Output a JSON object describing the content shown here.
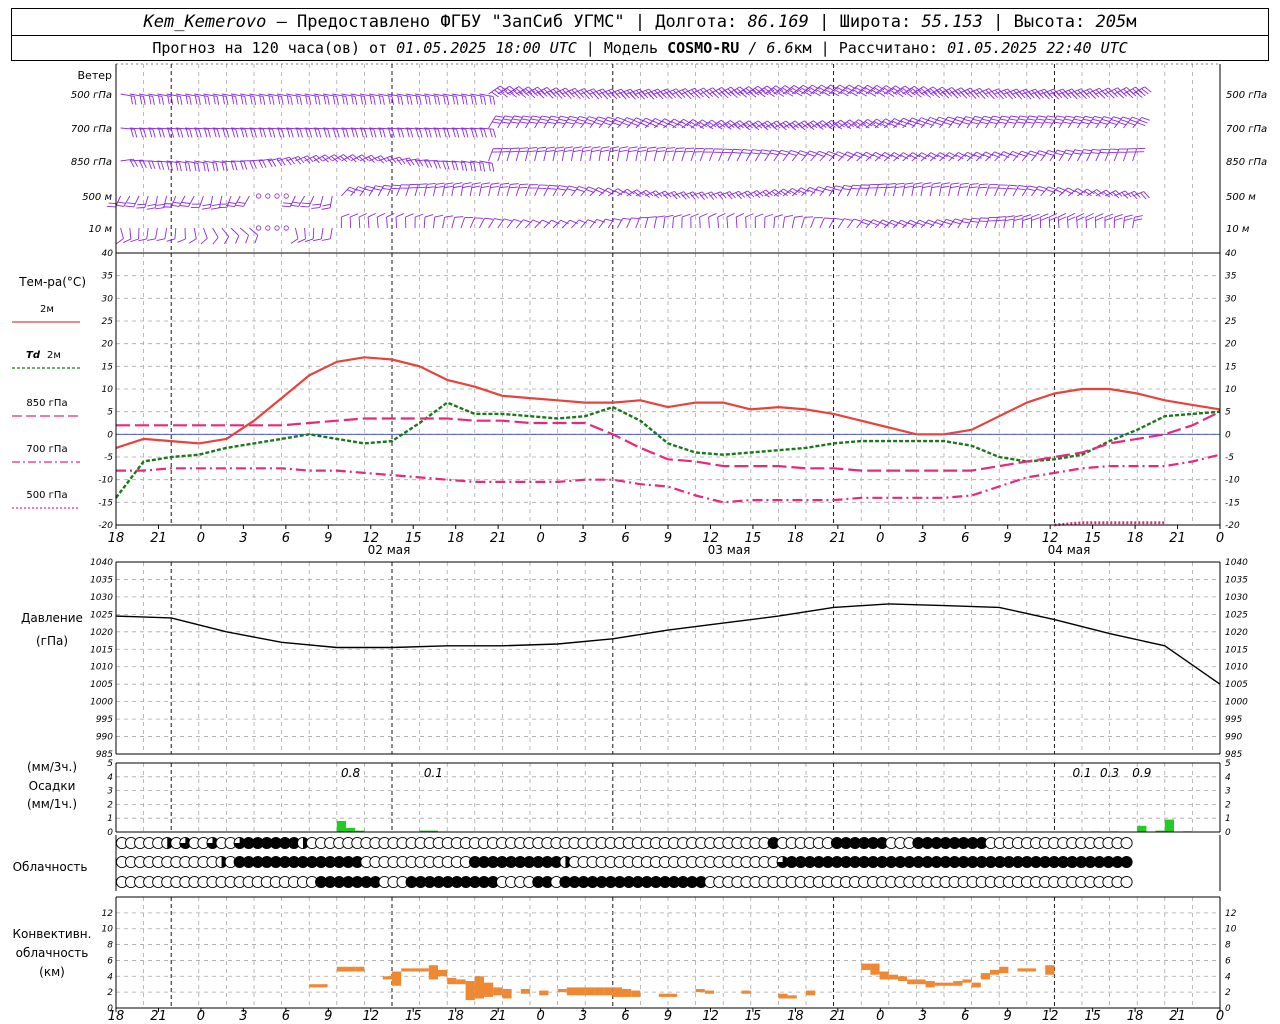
{
  "header": {
    "station": "Kem_Kemerovo",
    "provider": "— Предоставлено ФГБУ \"ЗапСиб УГМС\"",
    "lon_label": "Долгота:",
    "lon_value": "86.169",
    "lat_label": "Широта:",
    "lat_value": "55.153",
    "alt_label": "Высота:",
    "alt_value": "205",
    "alt_unit": "м",
    "forecast_prefix": "Прогноз на 120 часа(ов) от",
    "forecast_time": "01.05.2025 18:00 UTC",
    "model_label": "Модель",
    "model_name": "COSMO-RU",
    "model_res_value": "/ 6.6",
    "model_res_unit": "км",
    "calc_label": "Рассчитано:",
    "calc_time": "01.05.2025 22:40 UTC"
  },
  "chart_data": {
    "x_start": "01.05.2025 18:00 UTC",
    "x_step_hours": 3,
    "x_tick_labels": [
      "18",
      "21",
      "0",
      "3",
      "6",
      "9",
      "12",
      "15",
      "18",
      "21",
      "0",
      "3",
      "6",
      "9",
      "12",
      "15",
      "18",
      "21",
      "0",
      "3",
      "6",
      "9",
      "12",
      "15",
      "18",
      "21",
      "0"
    ],
    "day_labels": [
      "02 мая",
      "03 мая",
      "04 мая"
    ],
    "wind": {
      "title": "Ветер",
      "levels": [
        "500 гПа",
        "700 гПа",
        "850 гПа",
        "500 м",
        "10 м"
      ]
    },
    "temperature": {
      "type": "line",
      "ylabel": "Тем-ра(°C)",
      "ylim": [
        -20,
        40
      ],
      "y_ticks": [
        -20,
        -15,
        -10,
        -5,
        0,
        5,
        10,
        15,
        20,
        25,
        30,
        35,
        40
      ],
      "colors": {
        "t2m": "#e8423c",
        "td2m": "#1a7a1a",
        "t850": "#e8287c",
        "t700": "#e8287c",
        "t500": "#e8287c"
      },
      "legend": [
        {
          "label": "2м"
        },
        {
          "label_it": "Td",
          "label": " 2м"
        },
        {
          "label": "850 гПа"
        },
        {
          "label": "700 гПа"
        },
        {
          "label": "500 гПа"
        }
      ],
      "x_hours": [
        0,
        3,
        6,
        9,
        12,
        15,
        18,
        21,
        24,
        27,
        30,
        33,
        36,
        39,
        42,
        45,
        48,
        51,
        54,
        57,
        60,
        63,
        66,
        69,
        72,
        75,
        78,
        81,
        84,
        87,
        90,
        93,
        96,
        99,
        102,
        105,
        108,
        111,
        114,
        117,
        120
      ],
      "series": [
        {
          "key": "t2m",
          "values": [
            -3,
            -1,
            -1.5,
            -2,
            -1,
            3,
            8,
            13,
            16,
            17,
            16.5,
            15,
            12,
            10.5,
            8.5,
            8,
            7.5,
            7,
            7,
            7.5,
            6,
            7,
            7,
            5.5,
            6,
            5.5,
            4.5,
            3,
            1.5,
            0,
            0,
            1,
            4,
            7,
            9,
            10,
            10,
            9,
            7.5,
            6.5,
            5.5
          ]
        },
        {
          "key": "td2m",
          "values": [
            -14,
            -6,
            -5,
            -4.5,
            -3,
            -2,
            -1,
            0,
            -1,
            -2,
            -1.5,
            2.5,
            7,
            4.5,
            4.5,
            4,
            3.5,
            4,
            6,
            3,
            -2,
            -4,
            -4.5,
            -4,
            -3.5,
            -3,
            -2,
            -1.5,
            -1.5,
            -1.5,
            -1.5,
            -2.5,
            -5,
            -6,
            -5.5,
            -4.5,
            -1.5,
            1,
            4,
            4.5,
            5
          ]
        },
        {
          "key": "t850",
          "values": [
            2,
            2,
            2,
            2,
            2,
            2,
            2,
            2.5,
            3,
            3.5,
            3.5,
            3.5,
            3.5,
            3,
            3,
            2.5,
            2.5,
            2.5,
            0,
            -3,
            -5.5,
            -6,
            -7,
            -7,
            -7,
            -7.5,
            -7.5,
            -8,
            -8,
            -8,
            -8,
            -8,
            -7,
            -6,
            -5,
            -4,
            -2,
            -1,
            0,
            2,
            5
          ]
        },
        {
          "key": "t700",
          "values": [
            -8,
            -8,
            -7.5,
            -7.5,
            -7.5,
            -7.5,
            -7.5,
            -8,
            -8,
            -8.5,
            -9,
            -9.5,
            -10,
            -10.5,
            -10.5,
            -10.5,
            -10.5,
            -10,
            -10,
            -11,
            -11.5,
            -13.5,
            -15,
            -14.5,
            -14.5,
            -14.5,
            -14.5,
            -14,
            -14,
            -14,
            -14,
            -13.5,
            -11.5,
            -9.5,
            -8.5,
            -7.5,
            -7,
            -7,
            -7,
            -6,
            -4.5
          ]
        },
        {
          "key": "t500",
          "x_hours": [
            102,
            105,
            108,
            111,
            114
          ],
          "values": [
            -20,
            -19.5,
            -19.5,
            -19.5,
            -19.5
          ]
        }
      ]
    },
    "pressure": {
      "type": "line",
      "ylabel": "Давление",
      "yunit": "(гПа)",
      "ylim": [
        985,
        1040
      ],
      "y_ticks": [
        985,
        990,
        995,
        1000,
        1005,
        1010,
        1015,
        1020,
        1025,
        1030,
        1035,
        1040
      ],
      "color": "#000000",
      "x_hours": [
        0,
        6,
        12,
        18,
        24,
        30,
        36,
        42,
        48,
        54,
        60,
        66,
        72,
        78,
        84,
        90,
        96,
        102,
        108,
        114,
        120
      ],
      "values": [
        1024.5,
        1024,
        1020,
        1017,
        1015.5,
        1015.5,
        1016,
        1016,
        1016.5,
        1018,
        1020.5,
        1022.5,
        1024.5,
        1027,
        1028,
        1027.5,
        1027,
        1023.5,
        1019.5,
        1016,
        1005
      ]
    },
    "precip": {
      "type": "bar",
      "ylabel_top": "(мм/3ч.)",
      "ylabel_mid": "Осадки",
      "ylabel_bot": "(мм/1ч.)",
      "ylim": [
        0,
        5
      ],
      "y_ticks": [
        0,
        1,
        2,
        3,
        4,
        5
      ],
      "color": "#22cc22",
      "hourly_bars": [
        {
          "h": 24,
          "v": 0.8
        },
        {
          "h": 25,
          "v": 0.3
        },
        {
          "h": 26,
          "v": 0.1
        },
        {
          "h": 33,
          "v": 0.1
        },
        {
          "h": 34,
          "v": 0.1
        },
        {
          "h": 106,
          "v": 0.05
        },
        {
          "h": 108,
          "v": 0.05
        },
        {
          "h": 111,
          "v": 0.45
        },
        {
          "h": 113,
          "v": 0.1
        },
        {
          "h": 114,
          "v": 0.9
        },
        {
          "h": 116,
          "v": 0.05
        }
      ],
      "sum_labels": [
        {
          "h": 25.5,
          "text": "0.8"
        },
        {
          "h": 34.5,
          "text": "0.1"
        },
        {
          "h": 105,
          "text": "0.1"
        },
        {
          "h": 108,
          "text": "0.3"
        },
        {
          "h": 111.5,
          "text": "0.9"
        }
      ]
    },
    "cloud": {
      "label": "Облачность",
      "rows_octas": [
        "0000040500600788888840000000000000000000000000000000000000000000000000008000000888888000888888880000000000000000",
        "0000000000040888888888888880000000000008888888888400000000000000000000000588888888888888888888888888888888888888",
        "0000000000000000000000888888800088888888880000880888888888888888800000000000000000000000000000000000000000000000"
      ]
    },
    "convective": {
      "type": "bar",
      "ylabel": [
        "Конвективн.",
        "облачность",
        "(км)"
      ],
      "ylim": [
        0,
        14
      ],
      "y_ticks": [
        0,
        2,
        4,
        6,
        8,
        10,
        12
      ],
      "color": "#ee8833",
      "bars": [
        {
          "h": 21,
          "lo": 2.6,
          "hi": 3.0
        },
        {
          "h": 22,
          "lo": 2.6,
          "hi": 3.0
        },
        {
          "h": 24,
          "lo": 4.6,
          "hi": 5.2
        },
        {
          "h": 25,
          "lo": 4.6,
          "hi": 5.2
        },
        {
          "h": 26,
          "lo": 4.6,
          "hi": 5.2
        },
        {
          "h": 29,
          "lo": 3.6,
          "hi": 4.0
        },
        {
          "h": 30,
          "lo": 2.8,
          "hi": 4.6
        },
        {
          "h": 31,
          "lo": 4.6,
          "hi": 5.0
        },
        {
          "h": 32,
          "lo": 4.6,
          "hi": 5.0
        },
        {
          "h": 33,
          "lo": 4.6,
          "hi": 5.0
        },
        {
          "h": 34,
          "lo": 3.6,
          "hi": 5.4
        },
        {
          "h": 35,
          "lo": 4.0,
          "hi": 4.8
        },
        {
          "h": 36,
          "lo": 3.0,
          "hi": 3.8
        },
        {
          "h": 37,
          "lo": 3.0,
          "hi": 3.6
        },
        {
          "h": 38,
          "lo": 1.0,
          "hi": 3.4
        },
        {
          "h": 39,
          "lo": 1.2,
          "hi": 4.0
        },
        {
          "h": 40,
          "lo": 1.4,
          "hi": 3.2
        },
        {
          "h": 41,
          "lo": 1.6,
          "hi": 2.6
        },
        {
          "h": 42,
          "lo": 1.2,
          "hi": 2.4
        },
        {
          "h": 44,
          "lo": 1.8,
          "hi": 2.4
        },
        {
          "h": 46,
          "lo": 1.6,
          "hi": 2.2
        },
        {
          "h": 48,
          "lo": 2.0,
          "hi": 2.4
        },
        {
          "h": 49,
          "lo": 1.6,
          "hi": 2.6
        },
        {
          "h": 50,
          "lo": 1.6,
          "hi": 2.6
        },
        {
          "h": 51,
          "lo": 1.6,
          "hi": 2.6
        },
        {
          "h": 52,
          "lo": 1.6,
          "hi": 2.6
        },
        {
          "h": 53,
          "lo": 1.6,
          "hi": 2.6
        },
        {
          "h": 54,
          "lo": 1.4,
          "hi": 2.6
        },
        {
          "h": 55,
          "lo": 1.4,
          "hi": 2.4
        },
        {
          "h": 56,
          "lo": 1.4,
          "hi": 2.2
        },
        {
          "h": 59,
          "lo": 1.4,
          "hi": 1.8
        },
        {
          "h": 60,
          "lo": 1.4,
          "hi": 1.8
        },
        {
          "h": 63,
          "lo": 2.0,
          "hi": 2.4
        },
        {
          "h": 64,
          "lo": 1.8,
          "hi": 2.2
        },
        {
          "h": 68,
          "lo": 1.8,
          "hi": 2.2
        },
        {
          "h": 72,
          "lo": 1.2,
          "hi": 1.8
        },
        {
          "h": 73,
          "lo": 1.2,
          "hi": 1.6
        },
        {
          "h": 75,
          "lo": 1.6,
          "hi": 2.2
        },
        {
          "h": 81,
          "lo": 4.8,
          "hi": 5.6
        },
        {
          "h": 82,
          "lo": 4.2,
          "hi": 5.6
        },
        {
          "h": 83,
          "lo": 3.6,
          "hi": 4.6
        },
        {
          "h": 84,
          "lo": 3.6,
          "hi": 4.2
        },
        {
          "h": 85,
          "lo": 3.4,
          "hi": 4.0
        },
        {
          "h": 86,
          "lo": 3.0,
          "hi": 3.6
        },
        {
          "h": 87,
          "lo": 3.0,
          "hi": 3.6
        },
        {
          "h": 88,
          "lo": 2.6,
          "hi": 3.4
        },
        {
          "h": 89,
          "lo": 2.8,
          "hi": 3.2
        },
        {
          "h": 90,
          "lo": 2.8,
          "hi": 3.2
        },
        {
          "h": 91,
          "lo": 2.8,
          "hi": 3.4
        },
        {
          "h": 92,
          "lo": 3.2,
          "hi": 3.6
        },
        {
          "h": 93,
          "lo": 2.6,
          "hi": 3.2
        },
        {
          "h": 94,
          "lo": 3.6,
          "hi": 4.4
        },
        {
          "h": 95,
          "lo": 4.2,
          "hi": 4.8
        },
        {
          "h": 96,
          "lo": 4.4,
          "hi": 5.2
        },
        {
          "h": 98,
          "lo": 4.6,
          "hi": 5.0
        },
        {
          "h": 99,
          "lo": 4.6,
          "hi": 5.0
        },
        {
          "h": 101,
          "lo": 4.2,
          "hi": 5.4
        }
      ]
    }
  }
}
